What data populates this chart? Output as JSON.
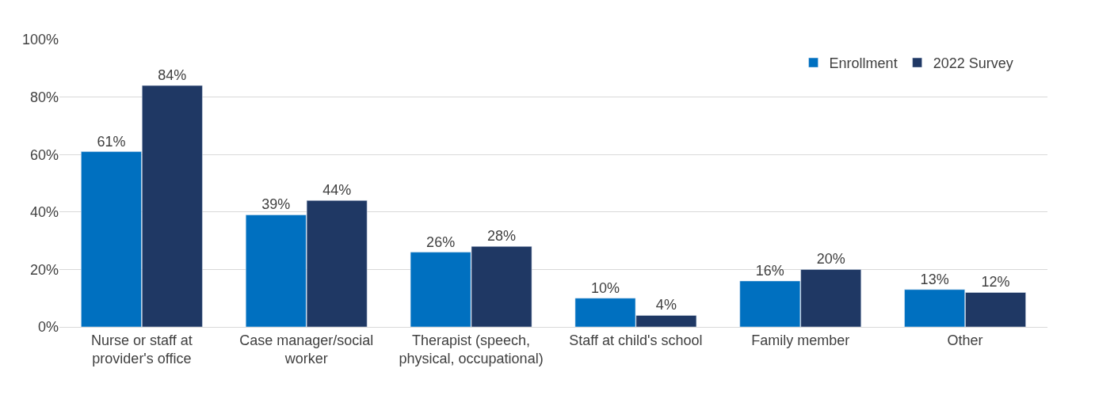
{
  "chart_data": {
    "type": "bar",
    "categories": [
      "Nurse or staff at provider's office",
      "Case manager/social worker",
      "Therapist (speech, physical, occupational)",
      "Staff at child's school",
      "Family member",
      "Other"
    ],
    "series": [
      {
        "name": "Enrollment",
        "color": "#0070c0",
        "values": [
          61,
          39,
          26,
          10,
          16,
          13
        ],
        "value_labels": [
          "61%",
          "39%",
          "26%",
          "10%",
          "16%",
          "13%"
        ]
      },
      {
        "name": "2022 Survey",
        "color": "#1f3864",
        "values": [
          84,
          44,
          28,
          4,
          20,
          12
        ],
        "value_labels": [
          "84%",
          "44%",
          "28%",
          "4%",
          "20%",
          "12%"
        ]
      }
    ],
    "ylim": [
      0,
      100
    ],
    "yticks": [
      {
        "value": 0,
        "label": "0%"
      },
      {
        "value": 20,
        "label": "20%"
      },
      {
        "value": 40,
        "label": "40%"
      },
      {
        "value": 60,
        "label": "60%"
      },
      {
        "value": 80,
        "label": "80%"
      },
      {
        "value": 100,
        "label": "100%"
      }
    ],
    "grid": "y",
    "legend": "top right"
  }
}
